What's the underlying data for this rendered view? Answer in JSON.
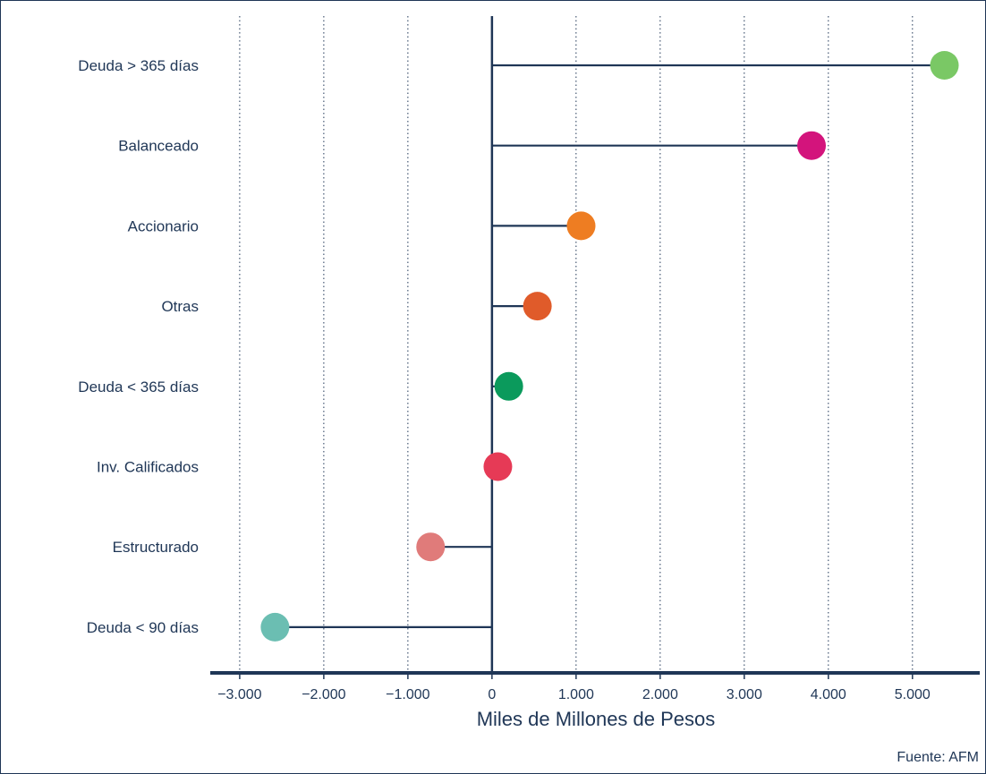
{
  "chart_data": {
    "type": "lollipop",
    "orientation": "horizontal",
    "categories": [
      "Deuda > 365 días",
      "Balanceado",
      "Accionario",
      "Otras",
      "Deuda < 365 días",
      "Inv. Calificados",
      "Estructurado",
      "Deuda < 90 días"
    ],
    "values": [
      5380,
      3800,
      1060,
      540,
      200,
      70,
      -730,
      -2580
    ],
    "colors": [
      "#7ac865",
      "#d3147c",
      "#ee7d22",
      "#e05b2a",
      "#0b9a5c",
      "#e63a56",
      "#e07b7a",
      "#6bbeb2"
    ],
    "xlabel": "Miles de Millones de Pesos",
    "xlim": [
      -3350,
      5800
    ],
    "xticks": [
      -3000,
      -2000,
      -1000,
      0,
      1000,
      2000,
      3000,
      4000,
      5000
    ],
    "xtick_labels": [
      "−3.000",
      "−2.000",
      "−1.000",
      "0",
      "1.000",
      "2.000",
      "3.000",
      "4.000",
      "5.000"
    ],
    "grid": "vertical-dotted",
    "source": "Fuente: AFM",
    "line_color": "#1f3656"
  }
}
